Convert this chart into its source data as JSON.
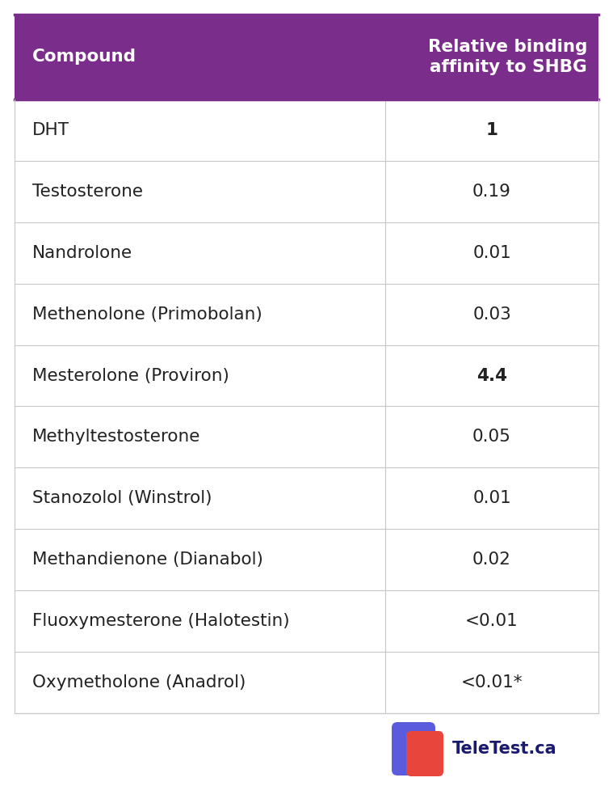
{
  "header_col1": "Compound",
  "header_col2": "Relative binding\naffinity to SHBG",
  "rows": [
    [
      "DHT",
      "1",
      true,
      false
    ],
    [
      "Testosterone",
      "0.19",
      false,
      false
    ],
    [
      "Nandrolone",
      "0.01",
      false,
      false
    ],
    [
      "Methenolone (Primobolan)",
      "0.03",
      false,
      false
    ],
    [
      "Mesterolone (Proviron)",
      "4.4",
      true,
      false
    ],
    [
      "Methyltestosterone",
      "0.05",
      false,
      false
    ],
    [
      "Stanozolol (Winstrol)",
      "0.01",
      false,
      false
    ],
    [
      "Methandienone (Dianabol)",
      "0.02",
      false,
      false
    ],
    [
      "Fluoxymesterone (Halotestin)",
      "<0.01",
      false,
      false
    ],
    [
      "Oxymetholone (Anadrol)",
      "<0.01*",
      false,
      false
    ]
  ],
  "header_bg": "#7B2D8B",
  "header_text_color": "#FFFFFF",
  "divider_color": "#C8C8C8",
  "text_color": "#222222",
  "col_split": 0.635,
  "header_fontsize": 15.5,
  "cell_fontsize": 15.5,
  "logo_text": "TeleTest.ca",
  "logo_text_color": "#1A1A6E",
  "logo_fontsize": 15,
  "outer_border_color": "#7B2D8B",
  "logo_blue": "#5B5BDD",
  "logo_red": "#E8453C"
}
